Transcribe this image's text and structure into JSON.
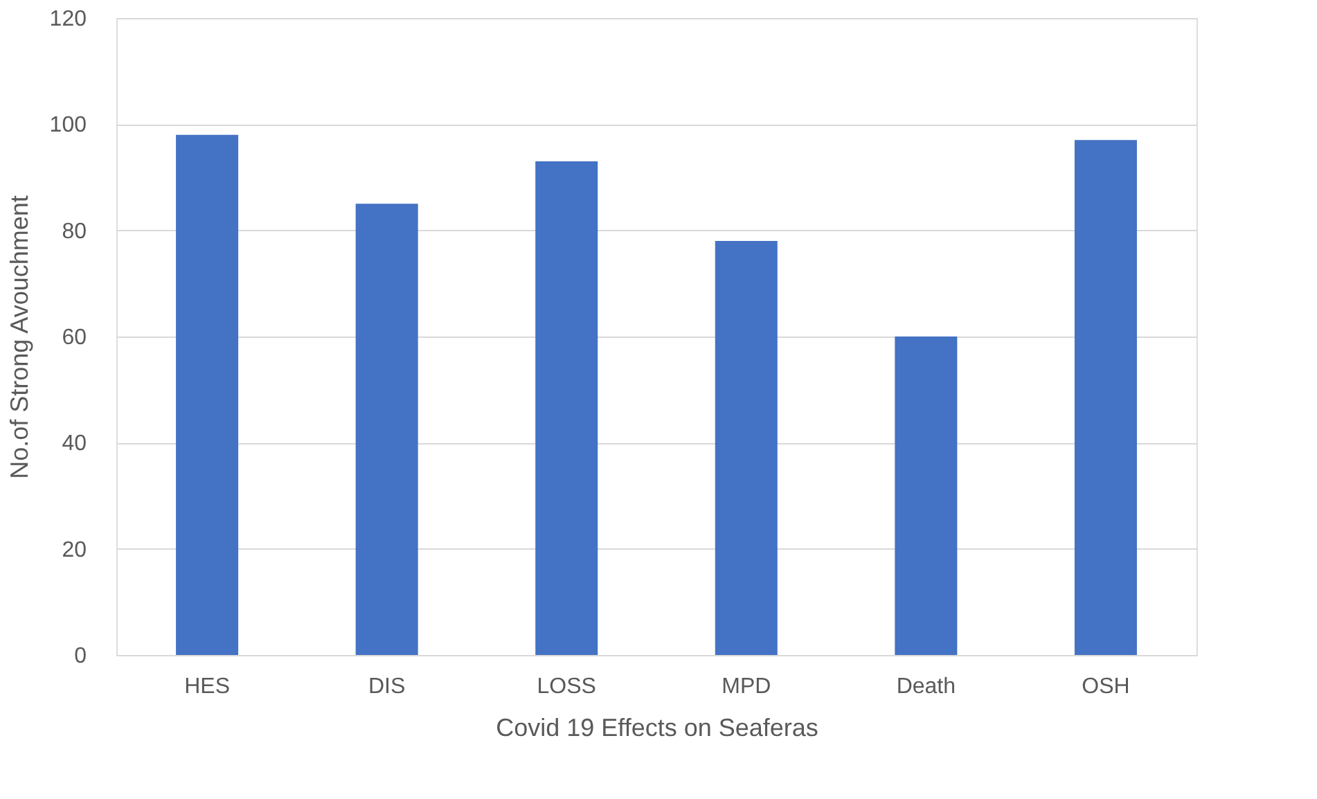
{
  "chart_data": {
    "type": "bar",
    "xlabel": "Covid 19 Effects on Seaferas",
    "ylabel": "No.of  Strong Avouchment",
    "categories": [
      "HES",
      "DIS",
      "LOSS",
      "MPD",
      "Death",
      "OSH"
    ],
    "values": [
      98,
      85,
      93,
      78,
      60,
      97
    ],
    "color": "#4472c4",
    "ylim": [
      0,
      120
    ],
    "yticks": [
      0,
      20,
      40,
      60,
      80,
      100,
      120
    ],
    "grid": "y"
  }
}
